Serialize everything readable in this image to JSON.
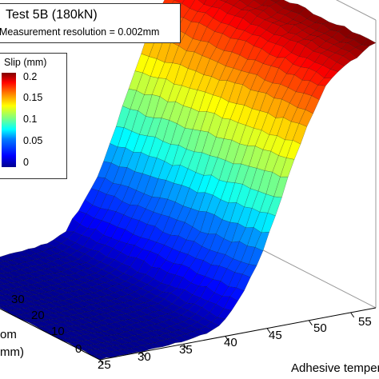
{
  "chart_data": {
    "type": "surface",
    "title": "Test 5B (180kN)",
    "subtitle": "Measurement resolution = 0.002mm",
    "colorbar": {
      "label": "Slip (mm)",
      "ticks": [
        "0.2",
        "0.15",
        "0.1",
        "0.05",
        "0"
      ],
      "range": [
        0,
        0.22
      ]
    },
    "x_axis": {
      "label": "Adhesive temper",
      "ticks": [
        "25",
        "30",
        "35",
        "40",
        "45",
        "50",
        "55"
      ],
      "range": [
        25,
        58
      ]
    },
    "y_axis": {
      "label_lines": [
        "om",
        "mm)"
      ],
      "ticks": [
        "30",
        "20",
        "10",
        "0"
      ]
    },
    "surface": {
      "temperature": [
        25,
        30,
        35,
        38,
        40,
        42,
        44,
        46,
        48,
        50,
        52,
        54,
        56,
        58
      ],
      "slip_mm": [
        0.0,
        0.0,
        0.002,
        0.005,
        0.012,
        0.03,
        0.055,
        0.09,
        0.13,
        0.165,
        0.19,
        0.205,
        0.212,
        0.22
      ]
    }
  }
}
